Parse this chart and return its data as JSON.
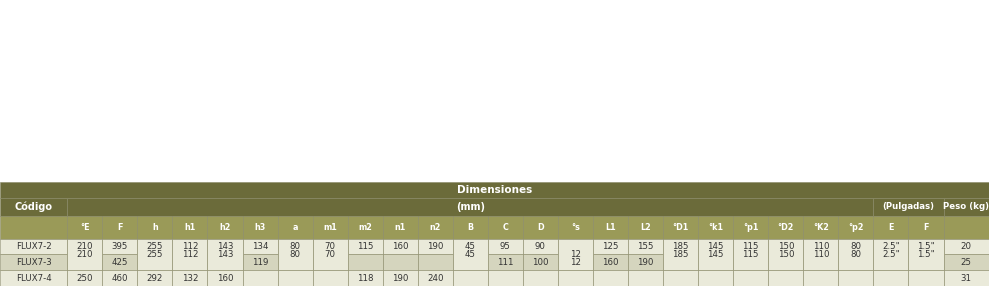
{
  "title": "Dimensiones",
  "subheader_mm": "(mm)",
  "subheader_pulgadas": "(Pulgadas)",
  "col_headers": [
    "°E",
    "F",
    "h",
    "h1",
    "h2",
    "h3",
    "a",
    "m1",
    "m2",
    "n1",
    "n2",
    "B",
    "C",
    "D",
    "°s",
    "L1",
    "L2",
    "°D1",
    "°k1",
    "°p1",
    "°D2",
    "°K2",
    "°p2",
    "E",
    "F"
  ],
  "rows": [
    {
      "code": "FLUX7-2",
      "E": "210",
      "F": "395",
      "h": "255",
      "h1": "112",
      "h2": "143",
      "h3": "134",
      "a": "80",
      "m1": "70",
      "m2": "115",
      "n1": "160",
      "n2": "190",
      "B": "45",
      "C": "95",
      "D": "90",
      "s": "",
      "L1": "125",
      "L2": "155",
      "D1": "185",
      "k1": "145",
      "p1": "115",
      "D2": "150",
      "K2": "110",
      "p2": "80",
      "E_pul": "2.5\"",
      "F_pul": "1.5\"",
      "peso": "20"
    },
    {
      "code": "FLUX7-3",
      "E": "",
      "F": "425",
      "h": "",
      "h1": "",
      "h2": "",
      "h3": "119",
      "a": "",
      "m1": "",
      "m2": "",
      "n1": "",
      "n2": "",
      "B": "",
      "C": "111",
      "D": "100",
      "s": "12",
      "L1": "160",
      "L2": "190",
      "D1": "",
      "k1": "",
      "p1": "",
      "D2": "",
      "K2": "",
      "p2": "",
      "E_pul": "",
      "F_pul": "",
      "peso": "25"
    },
    {
      "code": "FLUX7-4",
      "E": "250",
      "F": "460",
      "h": "292",
      "h1": "132",
      "h2": "160",
      "h3": "",
      "a": "",
      "m1": "",
      "m2": "118",
      "n1": "190",
      "n2": "240",
      "B": "",
      "C": "",
      "D": "",
      "s": "",
      "L1": "",
      "L2": "",
      "D1": "",
      "k1": "",
      "p1": "",
      "D2": "",
      "K2": "",
      "p2": "",
      "E_pul": "",
      "F_pul": "",
      "peso": "31"
    }
  ],
  "header_bg": "#6b6b3a",
  "header_fg": "#ffffff",
  "subheader_bg": "#9a9a58",
  "subheader_fg": "#ffffff",
  "row_bg_light": "#eaeada",
  "row_bg_dark": "#d5d5be",
  "border_color": "#888866",
  "fig_bg": "#ffffff",
  "diagram_bg": "#f0f0e8"
}
